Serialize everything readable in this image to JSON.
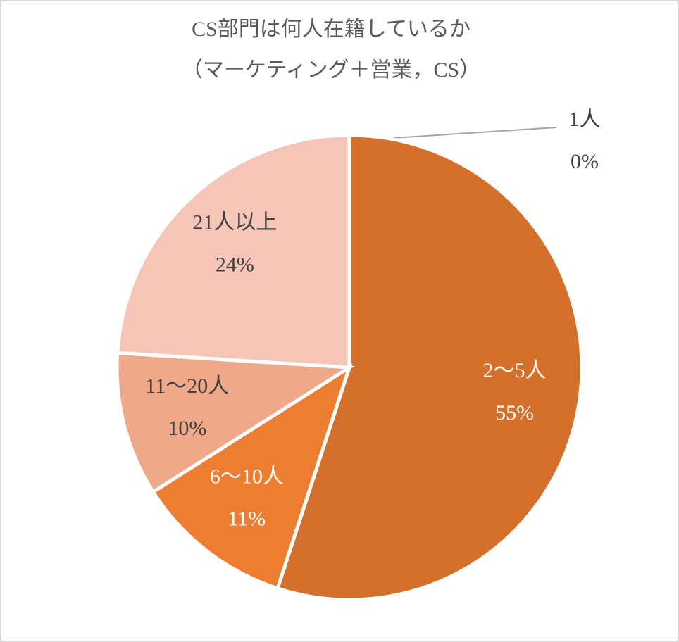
{
  "chart_data": {
    "type": "pie",
    "title": "CS部門は何人在籍しているか",
    "subtitle": "（マーケティング＋営業，CS）",
    "categories": [
      "1人",
      "2～5人",
      "6～10人",
      "11～20人",
      "21人以上"
    ],
    "values": [
      0,
      55,
      11,
      10,
      24
    ],
    "value_labels": [
      "0%",
      "55%",
      "11%",
      "10%",
      "24%"
    ],
    "colors": [
      "#a5a5a5",
      "#d4702c",
      "#ed7d31",
      "#f0a88a",
      "#f5c6b8"
    ]
  }
}
